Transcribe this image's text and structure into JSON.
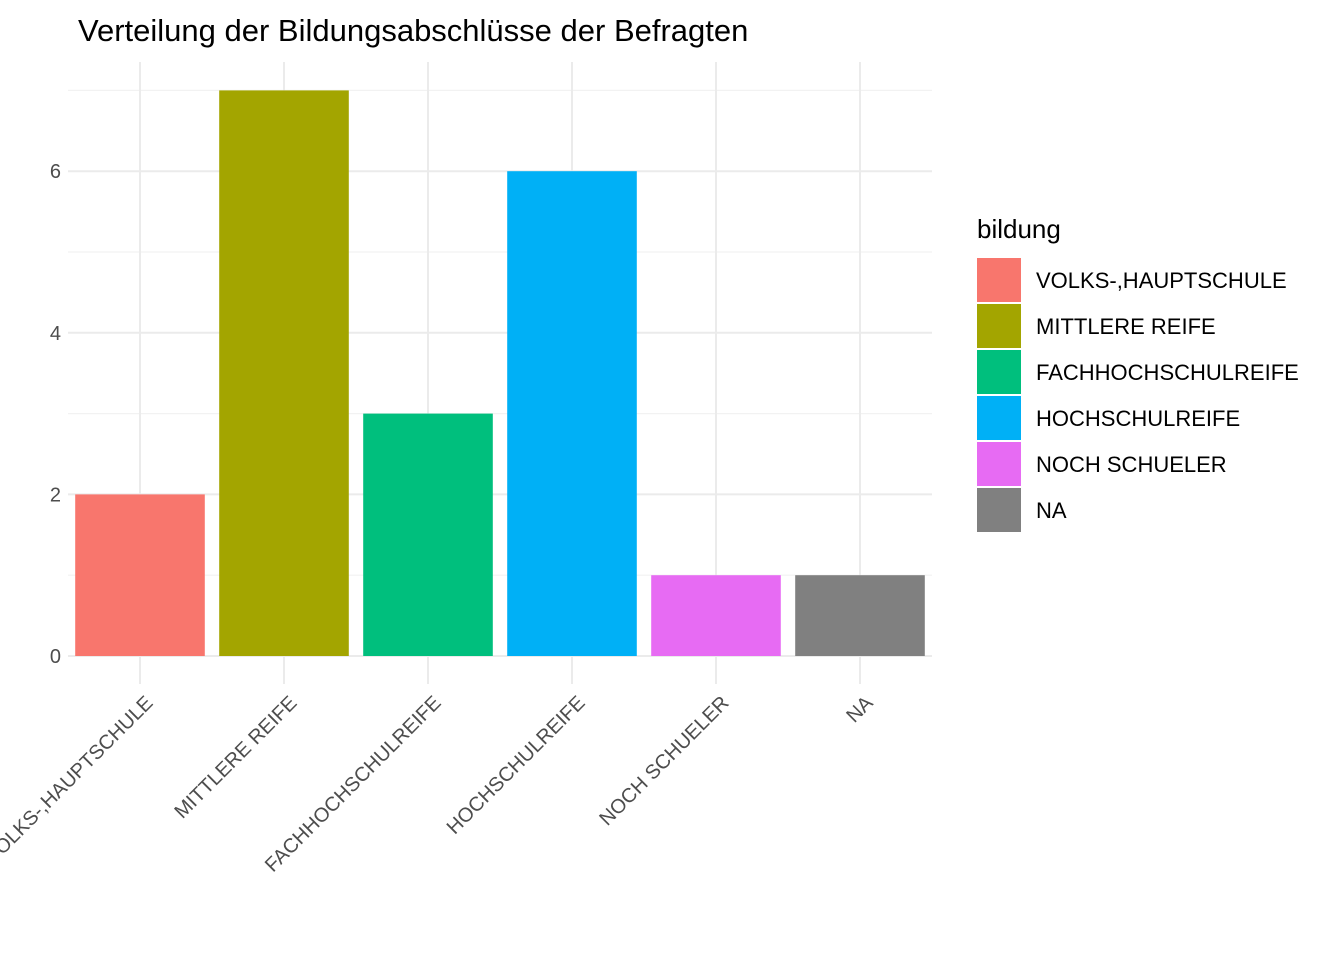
{
  "chart_data": {
    "type": "bar",
    "title": "Verteilung der Bildungsabschlüsse der Befragten",
    "xlabel": "",
    "ylabel": "",
    "categories": [
      "VOLKS-,HAUPTSCHULE",
      "MITTLERE REIFE",
      "FACHHOCHSCHULREIFE",
      "HOCHSCHULREIFE",
      "NOCH SCHUELER",
      "NA"
    ],
    "values": [
      2,
      7,
      3,
      6,
      1,
      1
    ],
    "colors": [
      "#F8766D",
      "#A3A500",
      "#00BF7D",
      "#00B0F6",
      "#E76BF3",
      "#808080"
    ],
    "ylim": [
      0,
      7.35
    ],
    "yticks": [
      0,
      2,
      4,
      6
    ],
    "grid": true,
    "legend": {
      "title": "bildung",
      "placement": "right",
      "entries": [
        "VOLKS-,HAUPTSCHULE",
        "MITTLERE REIFE",
        "FACHHOCHSCHULREIFE",
        "HOCHSCHULREIFE",
        "NOCH SCHUELER",
        "NA"
      ]
    }
  }
}
